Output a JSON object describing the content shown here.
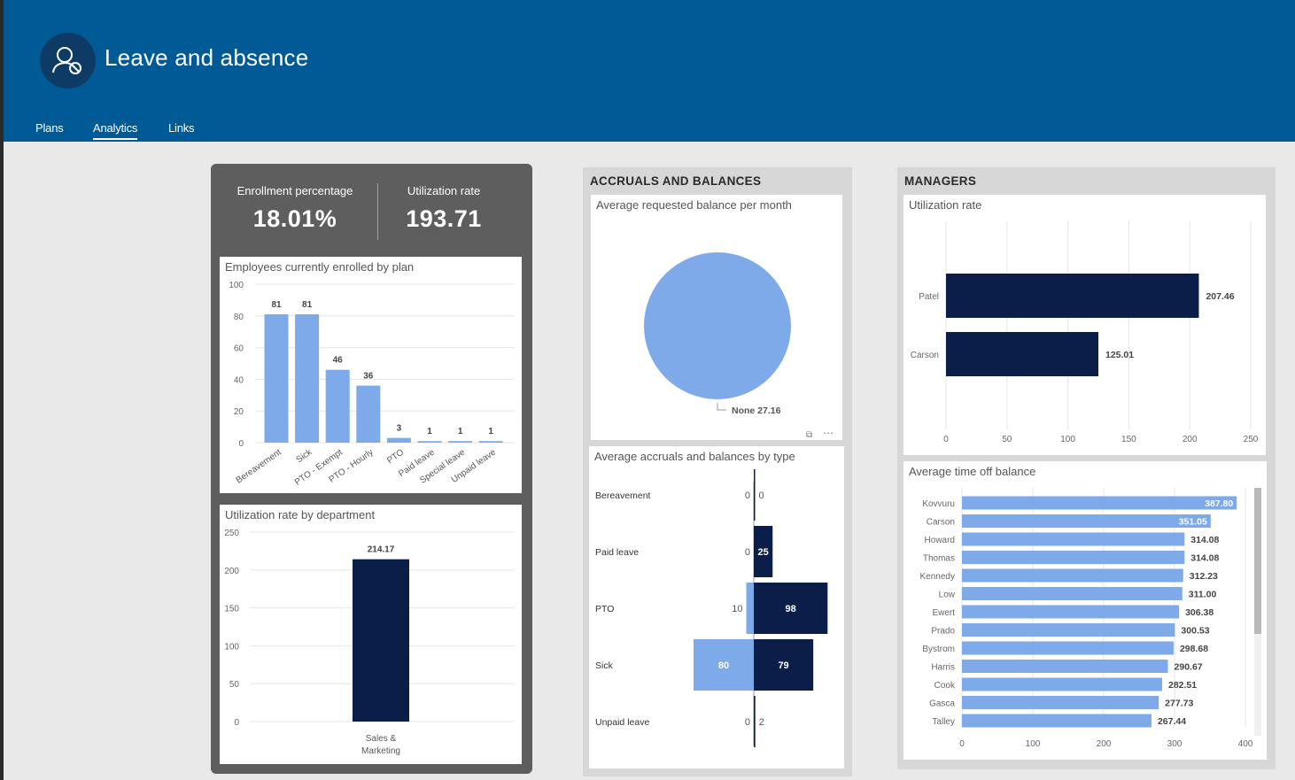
{
  "app": {
    "title": "Leave and absence"
  },
  "tabs": [
    {
      "label": "Plans"
    },
    {
      "label": "Analytics"
    },
    {
      "label": "Links"
    }
  ],
  "kpis": {
    "enrollment": {
      "label": "Enrollment percentage",
      "value": "18.01%"
    },
    "utilization": {
      "label": "Utilization rate",
      "value": "193.71"
    }
  },
  "sections": {
    "accruals": {
      "title": "ACCRUALS AND BALANCES"
    },
    "managers": {
      "title": "MANAGERS"
    }
  },
  "colors": {
    "light": "#7eaaea",
    "dark": "#0b1e49",
    "header": "#005a96"
  },
  "chart_data": [
    {
      "id": "enrolled",
      "type": "bar",
      "title": "Employees currently enrolled by plan",
      "categories": [
        "Bereavement",
        "Sick",
        "PTO - Exempt",
        "PTO - Hourly",
        "PTO",
        "Paid leave",
        "Special leave",
        "Unpaid leave"
      ],
      "values": [
        81,
        81,
        46,
        36,
        3,
        1,
        1,
        1
      ],
      "ylim": [
        0,
        100
      ],
      "yticks": [
        0,
        20,
        40,
        60,
        80,
        100
      ],
      "color": "#7eaaea"
    },
    {
      "id": "util_dept",
      "type": "bar",
      "title": "Utilization rate by department",
      "categories": [
        "Sales & Marketing"
      ],
      "values": [
        214.17
      ],
      "value_labels": [
        "214.17"
      ],
      "ylim": [
        0,
        250
      ],
      "yticks": [
        0,
        50,
        100,
        150,
        200,
        250
      ],
      "color": "#0b1e49"
    },
    {
      "id": "avg_balance",
      "type": "pie",
      "title": "Average requested balance per month",
      "slices": [
        {
          "label": "None",
          "value": 27.16,
          "value_label": "27.16"
        }
      ],
      "color": "#7eaaea"
    },
    {
      "id": "accruals",
      "type": "bar",
      "title": "Average accruals and balances by type",
      "categories": [
        "Bereavement",
        "Paid leave",
        "PTO",
        "Sick",
        "Unpaid leave"
      ],
      "series": [
        {
          "values": [
            0,
            0,
            10,
            80,
            0
          ],
          "color": "#7eaaea"
        },
        {
          "values": [
            0,
            25,
            98,
            79,
            2
          ],
          "color": "#0b1e49"
        }
      ]
    },
    {
      "id": "mgr_util",
      "type": "bar",
      "title": "Utilization rate",
      "categories": [
        "Patel",
        "Carson"
      ],
      "values": [
        207.46,
        125.01
      ],
      "value_labels": [
        "207.46",
        "125.01"
      ],
      "xlim": [
        0,
        250
      ],
      "xticks": [
        0,
        50,
        100,
        150,
        200,
        250
      ],
      "color": "#0b1e49"
    },
    {
      "id": "time_off",
      "type": "bar",
      "title": "Average time off balance",
      "categories": [
        "Kovvuru",
        "Carson",
        "Howard",
        "Thomas",
        "Kennedy",
        "Low",
        "Ewert",
        "Prado",
        "Bystrom",
        "Harris",
        "Cook",
        "Gasca",
        "Talley"
      ],
      "values": [
        387.8,
        351.05,
        314.08,
        314.08,
        312.23,
        311.0,
        306.38,
        300.53,
        298.68,
        290.67,
        282.51,
        277.73,
        267.44
      ],
      "value_labels": [
        "387.80",
        "351.05",
        "314.08",
        "314.08",
        "312.23",
        "311.00",
        "306.38",
        "300.53",
        "298.68",
        "290.67",
        "282.51",
        "277.73",
        "267.44"
      ],
      "xlim": [
        0,
        400
      ],
      "xticks": [
        0,
        100,
        200,
        300,
        400
      ],
      "color": "#7eaaea"
    }
  ]
}
